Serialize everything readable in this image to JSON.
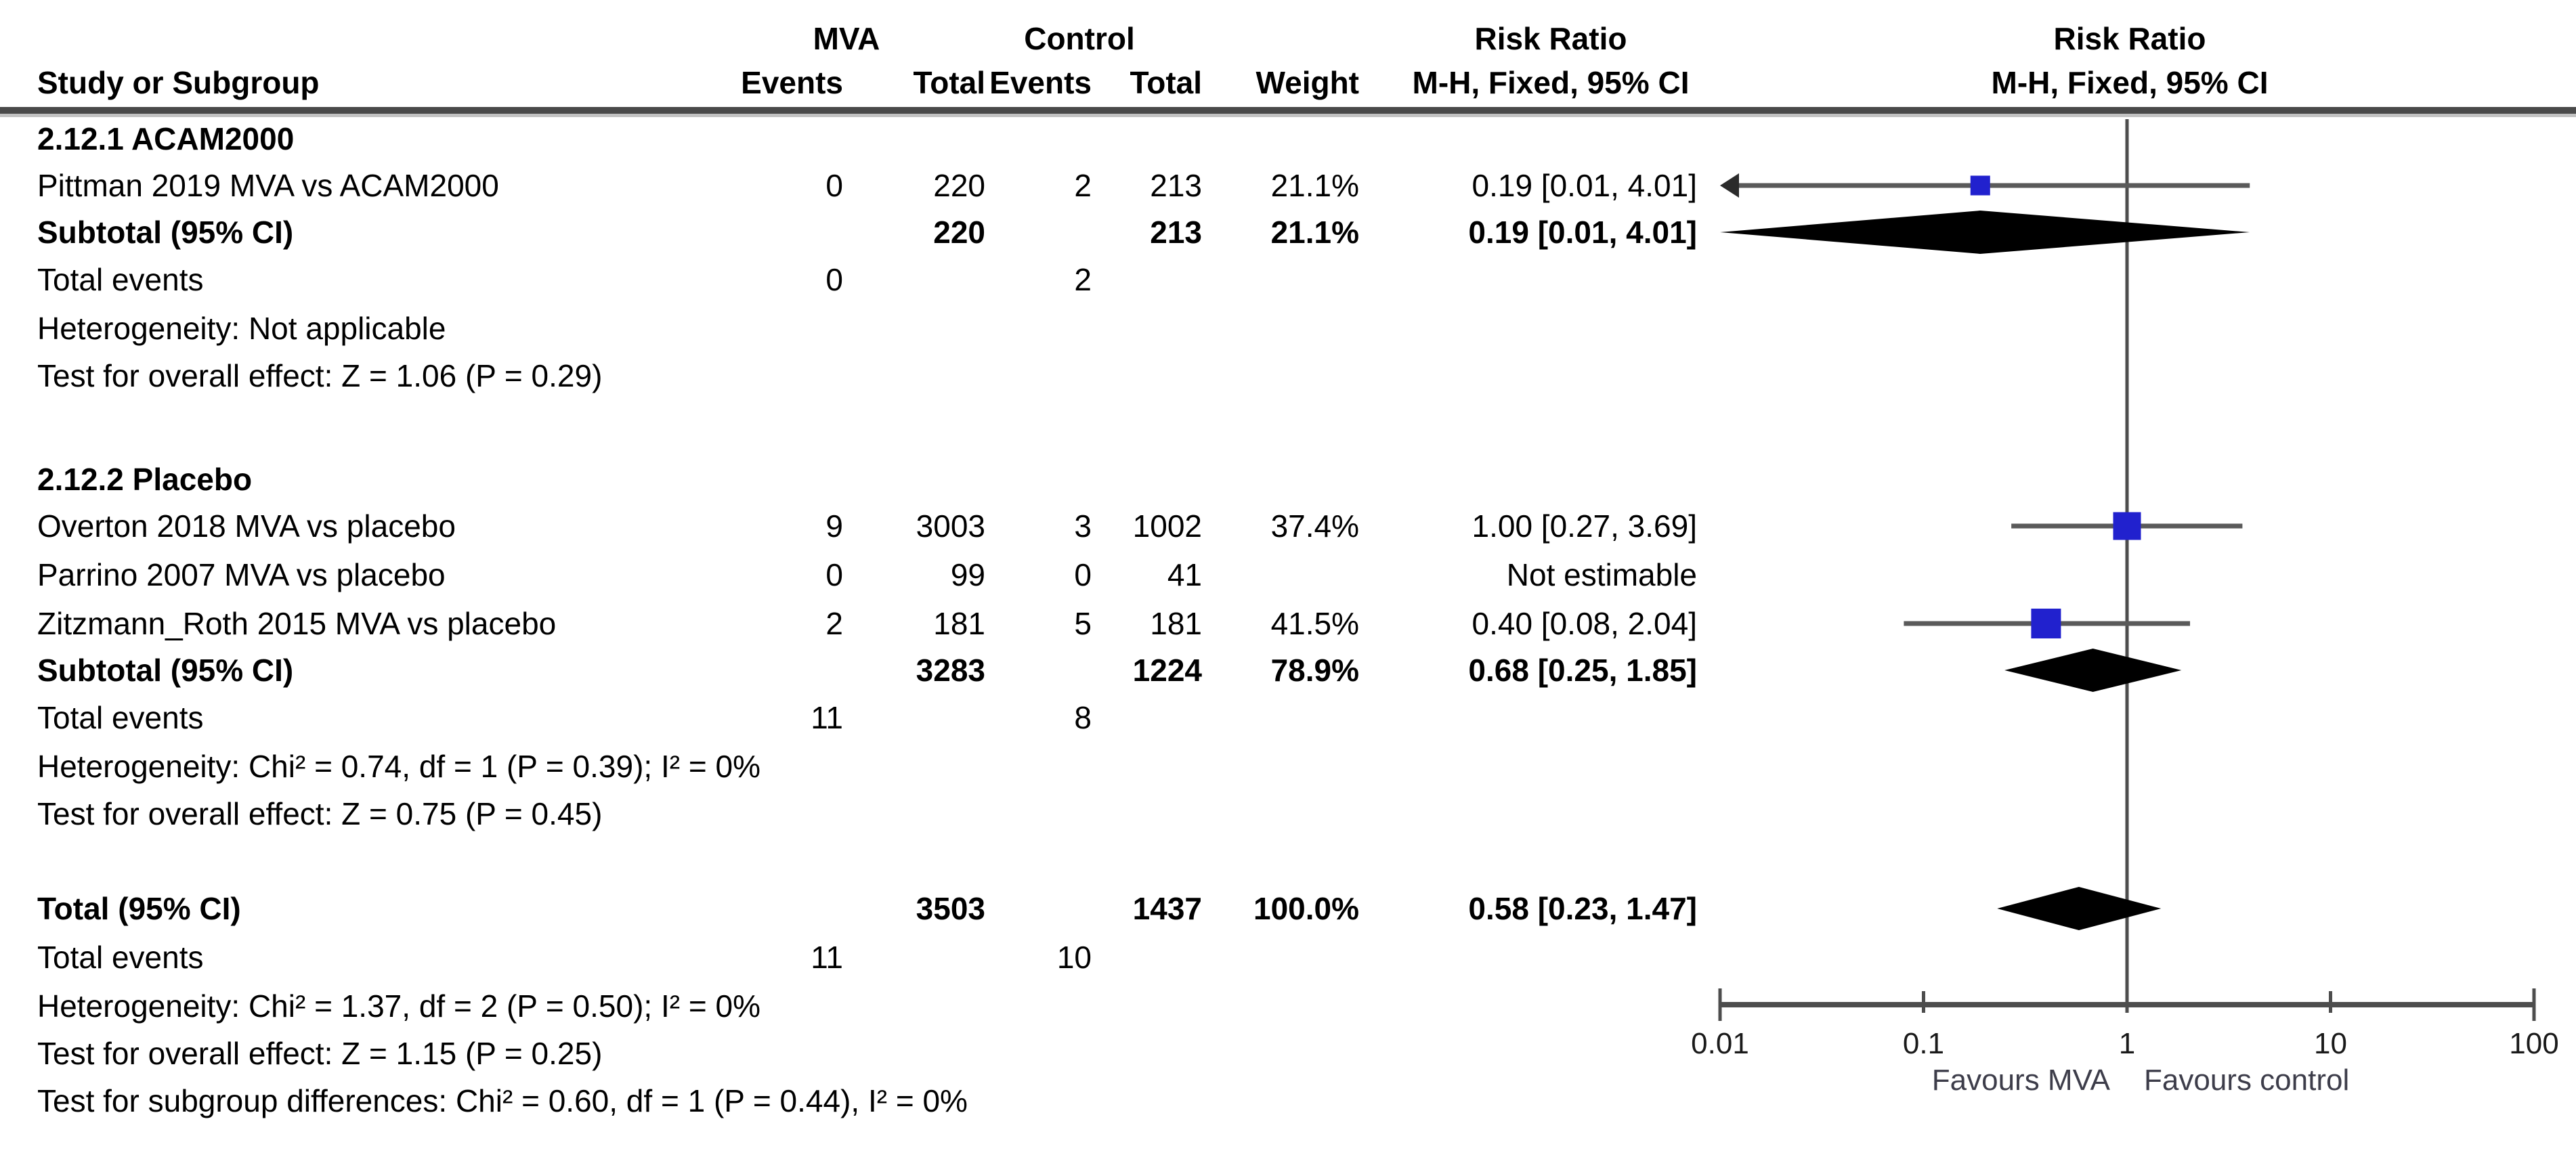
{
  "table": {
    "groups": {
      "treatment": "MVA",
      "control": "Control",
      "effect_title": "Risk Ratio"
    },
    "columns": {
      "study": "Study or Subgroup",
      "events": "Events",
      "total": "Total",
      "weight": "Weight",
      "effect": "M-H, Fixed, 95% CI"
    },
    "rows": [
      {
        "id": "sg1",
        "type": "subgroup",
        "label": "2.12.1 ACAM2000",
        "e1": "",
        "t1": "",
        "e2": "",
        "t2": "",
        "w": "",
        "rr": ""
      },
      {
        "id": "pittman",
        "type": "study",
        "label": "Pittman 2019 MVA vs ACAM2000",
        "e1": "0",
        "t1": "220",
        "e2": "2",
        "t2": "213",
        "w": "21.1%",
        "rr": "0.19 [0.01, 4.01]"
      },
      {
        "id": "st1",
        "type": "subtotal",
        "label": "Subtotal (95% CI)",
        "e1": "",
        "t1": "220",
        "e2": "",
        "t2": "213",
        "w": "21.1%",
        "rr": "0.19 [0.01, 4.01]"
      },
      {
        "id": "te1",
        "type": "events",
        "label": "Total events",
        "e1": "0",
        "t1": "",
        "e2": "2",
        "t2": "",
        "w": "",
        "rr": ""
      },
      {
        "id": "het1",
        "type": "note",
        "label": "Heterogeneity: Not applicable",
        "e1": "",
        "t1": "",
        "e2": "",
        "t2": "",
        "w": "",
        "rr": ""
      },
      {
        "id": "tst1",
        "type": "note",
        "label": "Test for overall effect: Z = 1.06 (P = 0.29)",
        "e1": "",
        "t1": "",
        "e2": "",
        "t2": "",
        "w": "",
        "rr": ""
      },
      {
        "id": "sp1",
        "type": "spacer",
        "label": "",
        "e1": "",
        "t1": "",
        "e2": "",
        "t2": "",
        "w": "",
        "rr": ""
      },
      {
        "id": "sg2",
        "type": "subgroup",
        "label": "2.12.2 Placebo",
        "e1": "",
        "t1": "",
        "e2": "",
        "t2": "",
        "w": "",
        "rr": ""
      },
      {
        "id": "overton",
        "type": "study",
        "label": "Overton 2018 MVA vs placebo",
        "e1": "9",
        "t1": "3003",
        "e2": "3",
        "t2": "1002",
        "w": "37.4%",
        "rr": "1.00 [0.27, 3.69]"
      },
      {
        "id": "parrino",
        "type": "study",
        "label": "Parrino 2007 MVA vs placebo",
        "e1": "0",
        "t1": "99",
        "e2": "0",
        "t2": "41",
        "w": "",
        "rr": "Not estimable"
      },
      {
        "id": "zitzmann",
        "type": "study",
        "label": "Zitzmann_Roth 2015 MVA vs placebo",
        "e1": "2",
        "t1": "181",
        "e2": "5",
        "t2": "181",
        "w": "41.5%",
        "rr": "0.40 [0.08, 2.04]"
      },
      {
        "id": "st2",
        "type": "subtotal",
        "label": "Subtotal (95% CI)",
        "e1": "",
        "t1": "3283",
        "e2": "",
        "t2": "1224",
        "w": "78.9%",
        "rr": "0.68 [0.25, 1.85]"
      },
      {
        "id": "te2",
        "type": "events",
        "label": "Total events",
        "e1": "11",
        "t1": "",
        "e2": "8",
        "t2": "",
        "w": "",
        "rr": ""
      },
      {
        "id": "het2",
        "type": "note",
        "label": "Heterogeneity: Chi² = 0.74, df = 1 (P = 0.39); I² = 0%",
        "e1": "",
        "t1": "",
        "e2": "",
        "t2": "",
        "w": "",
        "rr": ""
      },
      {
        "id": "tst2",
        "type": "note",
        "label": "Test for overall effect: Z = 0.75 (P = 0.45)",
        "e1": "",
        "t1": "",
        "e2": "",
        "t2": "",
        "w": "",
        "rr": ""
      },
      {
        "id": "sp2",
        "type": "spacer",
        "label": "",
        "e1": "",
        "t1": "",
        "e2": "",
        "t2": "",
        "w": "",
        "rr": ""
      },
      {
        "id": "total",
        "type": "total",
        "label": "Total (95% CI)",
        "e1": "",
        "t1": "3503",
        "e2": "",
        "t2": "1437",
        "w": "100.0%",
        "rr": "0.58 [0.23, 1.47]"
      },
      {
        "id": "te3",
        "type": "events",
        "label": "Total events",
        "e1": "11",
        "t1": "",
        "e2": "10",
        "t2": "",
        "w": "",
        "rr": ""
      },
      {
        "id": "het3",
        "type": "note",
        "label": "Heterogeneity: Chi² = 1.37, df = 2 (P = 0.50); I² = 0%",
        "e1": "",
        "t1": "",
        "e2": "",
        "t2": "",
        "w": "",
        "rr": ""
      },
      {
        "id": "tst3",
        "type": "note",
        "label": "Test for overall effect: Z = 1.15 (P = 0.25)",
        "e1": "",
        "t1": "",
        "e2": "",
        "t2": "",
        "w": "",
        "rr": ""
      },
      {
        "id": "sgd",
        "type": "note",
        "label": "Test for subgroup differences: Chi² = 0.60, df = 1 (P = 0.44), I² = 0%",
        "e1": "",
        "t1": "",
        "e2": "",
        "t2": "",
        "w": "",
        "rr": ""
      }
    ]
  },
  "chart_data": {
    "type": "forest",
    "x_scale": "log10",
    "effect_measure": "Risk Ratio, M-H, Fixed, 95% CI",
    "axis": {
      "min": 0.01,
      "max": 100,
      "null_line": 1,
      "ticks": [
        0.01,
        0.1,
        1,
        10,
        100
      ],
      "tick_labels": [
        "0.01",
        "0.1",
        "1",
        "10",
        "100"
      ]
    },
    "favours_left": "Favours MVA",
    "favours_right": "Favours control",
    "squares": [
      {
        "row": "pittman",
        "name": "Pittman 2019 MVA vs ACAM2000",
        "est": 0.19,
        "lo": 0.01,
        "hi": 4.01,
        "weight": 21.1,
        "arrow_lo": true
      },
      {
        "row": "overton",
        "name": "Overton 2018 MVA vs placebo",
        "est": 1.0,
        "lo": 0.27,
        "hi": 3.69,
        "weight": 37.4,
        "arrow_lo": false
      },
      {
        "row": "zitzmann",
        "name": "Zitzmann_Roth 2015 MVA vs placebo",
        "est": 0.4,
        "lo": 0.08,
        "hi": 2.04,
        "weight": 41.5,
        "arrow_lo": false
      }
    ],
    "diamonds": [
      {
        "row": "st1",
        "name": "Subtotal ACAM2000",
        "est": 0.19,
        "lo": 0.01,
        "hi": 4.01
      },
      {
        "row": "st2",
        "name": "Subtotal Placebo",
        "est": 0.68,
        "lo": 0.25,
        "hi": 1.85
      },
      {
        "row": "total",
        "name": "Total",
        "est": 0.58,
        "lo": 0.23,
        "hi": 1.47
      }
    ],
    "colors": {
      "square": "#2121ce",
      "diamond": "#000000",
      "ci_line": "#5a5a5a",
      "axis_line": "#4d4d4d",
      "tick_text": "#1a1a1a",
      "favours_text": "#3d3d4a"
    }
  }
}
